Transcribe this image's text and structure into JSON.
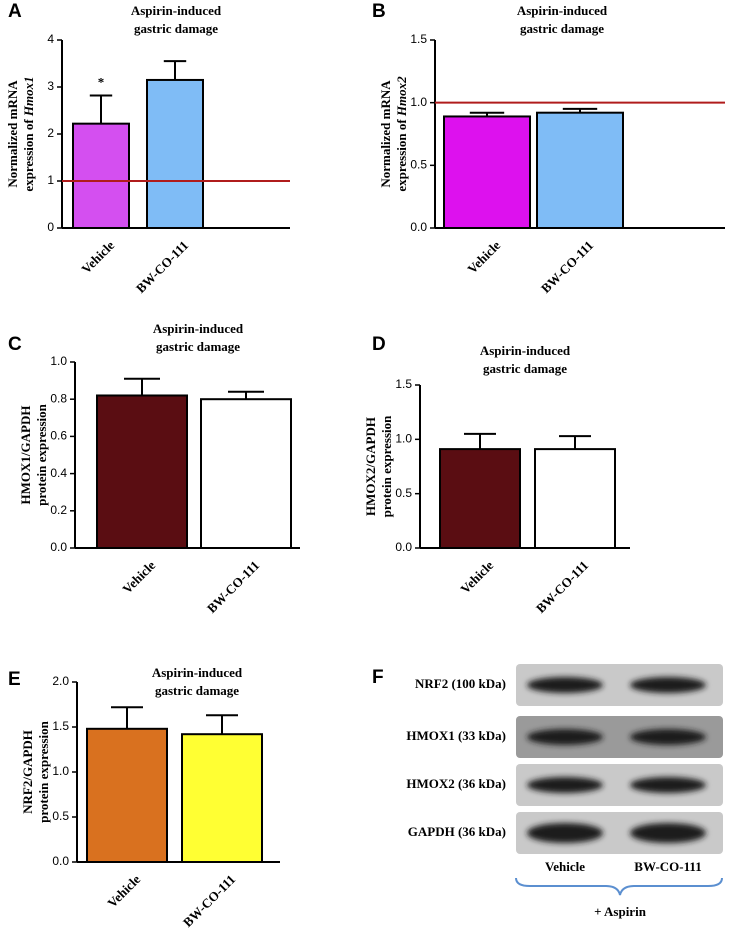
{
  "chart_data": [
    {
      "type": "bar",
      "panel": "A",
      "title": [
        "Aspirin-induced",
        "gastric damage"
      ],
      "ylabel": [
        "Normalized mRNA",
        "expression of"
      ],
      "gene": "Hmox1",
      "categories": [
        "Vehicle",
        "BW-CO-111"
      ],
      "values": [
        2.22,
        3.15
      ],
      "errors": [
        0.6,
        0.4
      ],
      "annotations": [
        "*",
        null
      ],
      "colors": [
        "#d44ff0",
        "#7fbcf6"
      ],
      "ylim": [
        0,
        4
      ],
      "yticks": [
        0,
        1,
        2,
        3,
        4
      ],
      "hline": 1,
      "hline_color": "#b01c1c"
    },
    {
      "type": "bar",
      "panel": "B",
      "title": [
        "Aspirin-induced",
        "gastric damage"
      ],
      "ylabel": [
        "Normalized mRNA",
        "expression of"
      ],
      "gene": "Hmox2",
      "categories": [
        "Vehicle",
        "BW-CO-111"
      ],
      "values": [
        0.89,
        0.92
      ],
      "errors": [
        0.03,
        0.03
      ],
      "colors": [
        "#dd11ee",
        "#7fbcf6"
      ],
      "ylim": [
        0,
        1.5
      ],
      "yticks": [
        {
          "value": 0,
          "label": "0.0"
        },
        0.5,
        {
          "value": 1,
          "label": "1.0"
        },
        1.5
      ],
      "hline": 1,
      "hline_color": "#b01c1c"
    },
    {
      "type": "bar",
      "panel": "C",
      "title": [
        "Aspirin-induced",
        "gastric damage"
      ],
      "ylabel": [
        "HMOX1/GAPDH",
        "protein expression"
      ],
      "categories": [
        "Vehicle",
        "BW-CO-111"
      ],
      "values": [
        0.82,
        0.8
      ],
      "errors": [
        0.09,
        0.04
      ],
      "colors": [
        "#5a0d12",
        "#ffffff"
      ],
      "ylim": [
        0,
        1
      ],
      "yticks": [
        {
          "value": 0,
          "label": "0.0"
        },
        0.2,
        0.4,
        0.6,
        0.8,
        {
          "value": 1,
          "label": "1.0"
        }
      ]
    },
    {
      "type": "bar",
      "panel": "D",
      "title": [
        "Aspirin-induced",
        "gastric damage"
      ],
      "ylabel": [
        "HMOX2/GAPDH",
        "protein expression"
      ],
      "categories": [
        "Vehicle",
        "BW-CO-111"
      ],
      "values": [
        0.91,
        0.91
      ],
      "errors": [
        0.14,
        0.12
      ],
      "colors": [
        "#5a0d12",
        "#ffffff"
      ],
      "ylim": [
        0,
        1.5
      ],
      "yticks": [
        {
          "value": 0,
          "label": "0.0"
        },
        0.5,
        {
          "value": 1,
          "label": "1.0"
        },
        1.5
      ]
    },
    {
      "type": "bar",
      "panel": "E",
      "title": [
        "Aspirin-induced",
        "gastric damage"
      ],
      "ylabel": [
        "NRF2/GAPDH",
        "protein expression"
      ],
      "categories": [
        "Vehicle",
        "BW-CO-111"
      ],
      "values": [
        1.48,
        1.42
      ],
      "errors": [
        0.24,
        0.21
      ],
      "colors": [
        "#d9711f",
        "#ffff33"
      ],
      "ylim": [
        0,
        2
      ],
      "yticks": [
        {
          "value": 0,
          "label": "0.0"
        },
        0.5,
        {
          "value": 1,
          "label": "1.0"
        },
        1.5,
        {
          "value": 2,
          "label": "2.0"
        }
      ]
    }
  ],
  "blot": {
    "panel": "F",
    "rows": [
      "NRF2 (100 kDa)",
      "HMOX1 (33 kDa)",
      "HMOX2 (36 kDa)",
      "GAPDH (36 kDa)"
    ],
    "lanes": [
      "Vehicle",
      "BW-CO-111"
    ],
    "group": "+ Aspirin"
  }
}
